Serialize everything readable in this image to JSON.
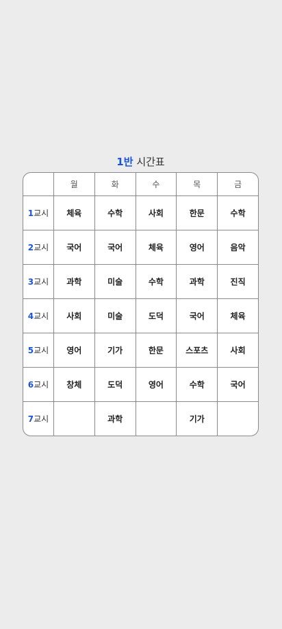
{
  "title": {
    "class_num": "1반",
    "label": "시간표"
  },
  "days": [
    "월",
    "화",
    "수",
    "목",
    "금"
  ],
  "period_suffix": "교시",
  "rows": [
    {
      "num": "1",
      "subjects": [
        "체육",
        "수학",
        "사회",
        "한문",
        "수학"
      ]
    },
    {
      "num": "2",
      "subjects": [
        "국어",
        "국어",
        "체육",
        "영어",
        "음악"
      ]
    },
    {
      "num": "3",
      "subjects": [
        "과학",
        "미술",
        "수학",
        "과학",
        "진직"
      ]
    },
    {
      "num": "4",
      "subjects": [
        "사회",
        "미술",
        "도덕",
        "국어",
        "체육"
      ]
    },
    {
      "num": "5",
      "subjects": [
        "영어",
        "기가",
        "한문",
        "스포츠",
        "사회"
      ]
    },
    {
      "num": "6",
      "subjects": [
        "창체",
        "도덕",
        "영어",
        "수학",
        "국어"
      ]
    },
    {
      "num": "7",
      "subjects": [
        "",
        "과학",
        "",
        "기가",
        ""
      ]
    }
  ],
  "colors": {
    "accent": "#1a55d6",
    "background": "#ececec",
    "border": "#8a8a8a"
  }
}
